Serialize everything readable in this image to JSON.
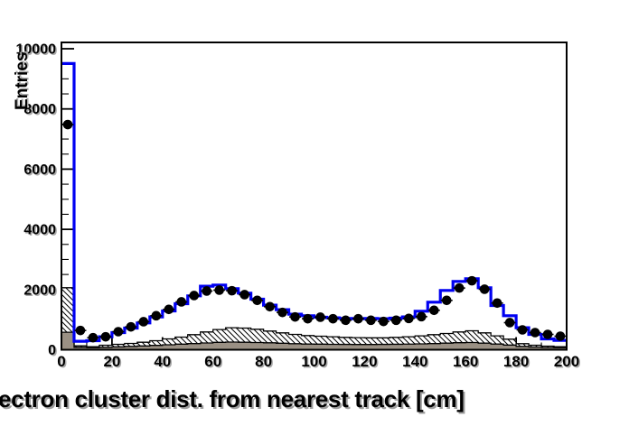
{
  "chart_data": {
    "type": "histogram",
    "title": "",
    "xlabel": "ectron cluster dist. from nearest track [cm]",
    "ylabel": "Entries",
    "xlim": [
      0,
      200
    ],
    "ylim": [
      0,
      10210
    ],
    "grid": false,
    "legend": null,
    "bin_width": 5,
    "bin_start": 0,
    "x_ticks": [
      {
        "value": 0,
        "label": "0"
      },
      {
        "value": 20,
        "label": "20"
      },
      {
        "value": 40,
        "label": "40"
      },
      {
        "value": 60,
        "label": "60"
      },
      {
        "value": 80,
        "label": "80"
      },
      {
        "value": 100,
        "label": "100"
      },
      {
        "value": 120,
        "label": "120"
      },
      {
        "value": 140,
        "label": "140"
      },
      {
        "value": 160,
        "label": "160"
      },
      {
        "value": 180,
        "label": "180"
      },
      {
        "value": 200,
        "label": "200"
      }
    ],
    "y_ticks": [
      {
        "value": 0,
        "label": "0"
      },
      {
        "value": 2000,
        "label": "2000"
      },
      {
        "value": 4000,
        "label": "4000"
      },
      {
        "value": 6000,
        "label": "6000"
      },
      {
        "value": 8000,
        "label": "8000"
      },
      {
        "value": 10000,
        "label": "10000"
      }
    ],
    "x_minor_step": 10,
    "y_minor_step": 500,
    "series": [
      {
        "name": "mc-hatched-histogram",
        "type": "step-filled",
        "fill": "hatch",
        "hatch_color": "#000000",
        "outline": "#000000",
        "values": [
          2060,
          130,
          100,
          150,
          180,
          210,
          250,
          300,
          360,
          420,
          500,
          590,
          670,
          730,
          720,
          680,
          620,
          560,
          510,
          470,
          450,
          430,
          410,
          400,
          395,
          395,
          410,
          430,
          460,
          500,
          540,
          590,
          630,
          560,
          460,
          350,
          200,
          150,
          120,
          100
        ]
      },
      {
        "name": "mc-gray-histogram",
        "type": "step-filled",
        "fill": "#9a9084",
        "outline": "#000000",
        "values": [
          580,
          80,
          70,
          80,
          95,
          110,
          125,
          145,
          165,
          185,
          205,
          225,
          245,
          255,
          250,
          240,
          230,
          215,
          200,
          190,
          185,
          180,
          178,
          175,
          175,
          178,
          182,
          188,
          195,
          205,
          220,
          235,
          240,
          220,
          190,
          155,
          110,
          90,
          75,
          70
        ]
      },
      {
        "name": "mc-total-histogram-outline",
        "type": "step-outline",
        "color": "#0000f2",
        "line_width": 3.2,
        "values": [
          9510,
          280,
          300,
          430,
          570,
          720,
          890,
          1090,
          1290,
          1530,
          1790,
          2110,
          2150,
          2030,
          1880,
          1680,
          1480,
          1330,
          1180,
          1130,
          1080,
          1060,
          1040,
          1030,
          1040,
          1030,
          1050,
          1090,
          1280,
          1580,
          1970,
          2270,
          2360,
          2060,
          1470,
          1130,
          730,
          510,
          360,
          310
        ]
      },
      {
        "name": "data-points",
        "type": "points",
        "color": "#000000",
        "marker_radius": 5.3,
        "error_bar": "horizontal-bin-width",
        "values": [
          7480,
          640,
          400,
          430,
          600,
          760,
          930,
          1130,
          1340,
          1590,
          1800,
          1950,
          1980,
          1960,
          1830,
          1640,
          1430,
          1240,
          1090,
          1030,
          1080,
          1030,
          980,
          1030,
          980,
          940,
          980,
          1040,
          1100,
          1310,
          1640,
          2050,
          2290,
          2010,
          1550,
          900,
          660,
          570,
          510,
          450
        ]
      }
    ],
    "frame_color": "#000000",
    "background": "#ffffff",
    "tick_label_shadow": "#aaaaaa"
  }
}
